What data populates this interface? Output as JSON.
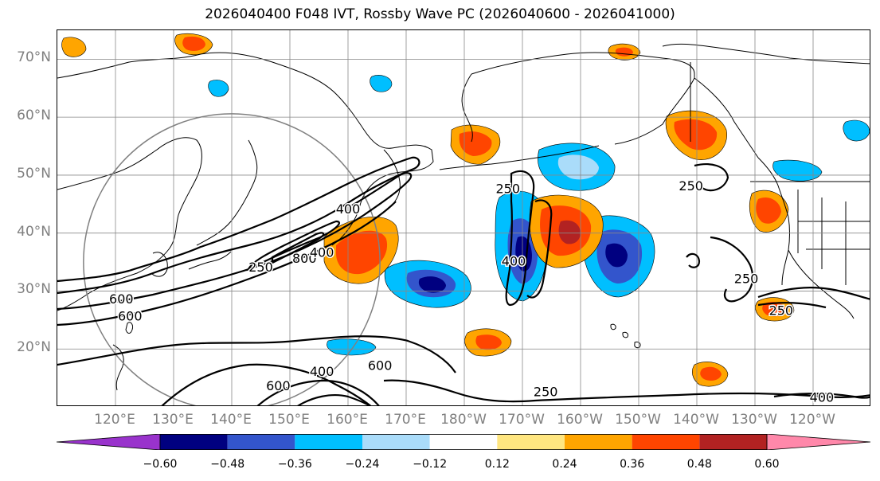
{
  "title": "2026040400 F048 IVT, Rossby Wave PC (2026040600 - 2026041000)",
  "map": {
    "projection": "PlateCarree",
    "lon_range": [
      110,
      250
    ],
    "lat_range": [
      10,
      75
    ],
    "gridlines": true,
    "lat_ticks": [
      {
        "value": 20,
        "label": "20°N"
      },
      {
        "value": 30,
        "label": "30°N"
      },
      {
        "value": 40,
        "label": "40°N"
      },
      {
        "value": 50,
        "label": "50°N"
      },
      {
        "value": 60,
        "label": "60°N"
      },
      {
        "value": 70,
        "label": "70°N"
      }
    ],
    "lon_ticks": [
      {
        "value": 120,
        "label": "120°E"
      },
      {
        "value": 130,
        "label": "130°E"
      },
      {
        "value": 140,
        "label": "140°E"
      },
      {
        "value": 150,
        "label": "150°E"
      },
      {
        "value": 160,
        "label": "160°E"
      },
      {
        "value": 170,
        "label": "170°E"
      },
      {
        "value": 180,
        "label": "180°W"
      },
      {
        "value": 190,
        "label": "170°W"
      },
      {
        "value": 200,
        "label": "160°W"
      },
      {
        "value": 210,
        "label": "150°W"
      },
      {
        "value": 220,
        "label": "140°W"
      },
      {
        "value": 230,
        "label": "130°W"
      },
      {
        "value": 240,
        "label": "120°W"
      }
    ],
    "reference_circle": {
      "center_lon": 140,
      "center_lat": 35,
      "radius_deg": 25.5,
      "color": "#808080"
    },
    "ivt_contour_labels": [
      {
        "text": "250",
        "lon": 145.0,
        "lat": 34.0
      },
      {
        "text": "400",
        "lon": 160.0,
        "lat": 44.0
      },
      {
        "text": "800",
        "lon": 152.5,
        "lat": 35.5
      },
      {
        "text": "400",
        "lon": 155.5,
        "lat": 36.5
      },
      {
        "text": "600",
        "lon": 121.0,
        "lat": 28.5
      },
      {
        "text": "600",
        "lon": 122.5,
        "lat": 25.5
      },
      {
        "text": "600",
        "lon": 148.0,
        "lat": 13.5
      },
      {
        "text": "400",
        "lon": 155.5,
        "lat": 16.0
      },
      {
        "text": "600",
        "lon": 165.5,
        "lat": 17.0
      },
      {
        "text": "250",
        "lon": 194.0,
        "lat": 12.5
      },
      {
        "text": "400",
        "lon": 241.5,
        "lat": 11.5
      },
      {
        "text": "250",
        "lon": 187.5,
        "lat": 47.5
      },
      {
        "text": "400",
        "lon": 188.5,
        "lat": 35.0
      },
      {
        "text": "250",
        "lon": 219.0,
        "lat": 48.0
      },
      {
        "text": "250",
        "lon": 228.5,
        "lat": 32.0
      },
      {
        "text": "250",
        "lon": 234.5,
        "lat": 26.5
      }
    ]
  },
  "colorbar": {
    "levels": [
      -0.72,
      -0.6,
      -0.48,
      -0.36,
      -0.24,
      -0.12,
      0.12,
      0.24,
      0.36,
      0.48,
      0.6,
      0.72
    ],
    "colors": [
      "#9933cc",
      "#000080",
      "#3355cc",
      "#00bfff",
      "#aadcfa",
      "#ffffff",
      "#ffe680",
      "#ffa500",
      "#ff4500",
      "#b22222",
      "#ff88aa"
    ],
    "tick_labels": [
      {
        "value": -0.6,
        "label": "−0.60"
      },
      {
        "value": -0.48,
        "label": "−0.48"
      },
      {
        "value": -0.36,
        "label": "−0.36"
      },
      {
        "value": -0.24,
        "label": "−0.24"
      },
      {
        "value": -0.12,
        "label": "−0.12"
      },
      {
        "value": 0.12,
        "label": "0.12"
      },
      {
        "value": 0.24,
        "label": "0.24"
      },
      {
        "value": 0.36,
        "label": "0.36"
      },
      {
        "value": 0.48,
        "label": "0.48"
      },
      {
        "value": 0.6,
        "label": "0.60"
      }
    ],
    "extend": "both"
  }
}
